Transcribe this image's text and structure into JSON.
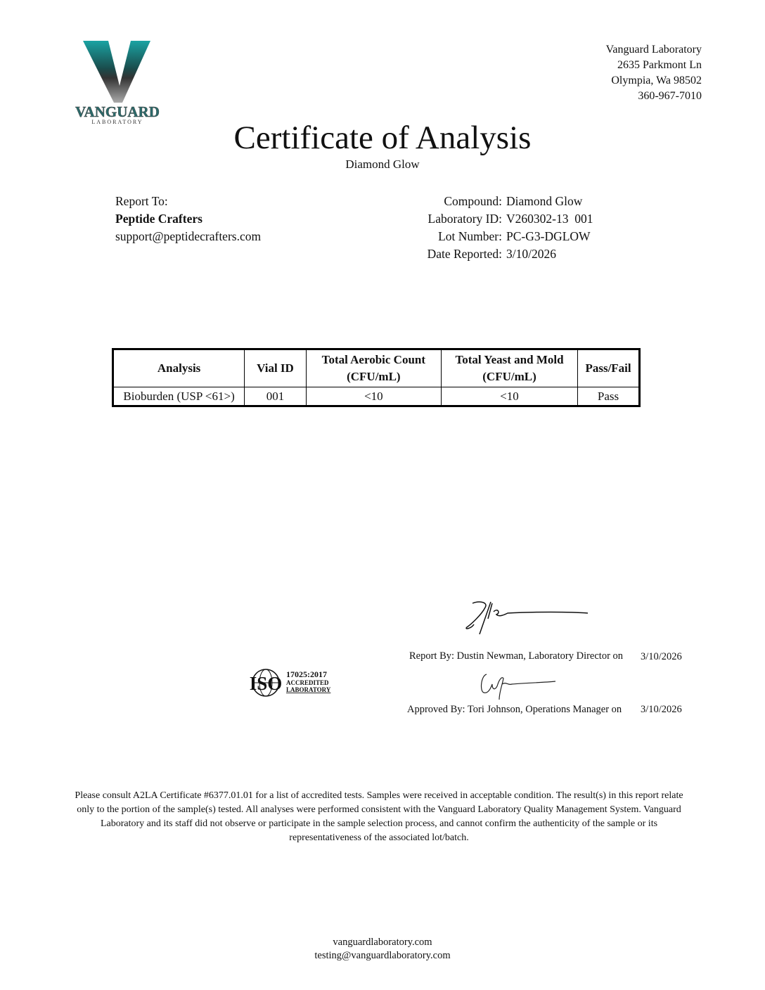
{
  "logo": {
    "text": "VANGUARD",
    "subtext": "LABORATORY",
    "colors": [
      "#1aa3a3",
      "#222222",
      "#bbbbbb"
    ]
  },
  "lab_address": [
    "Vanguard Laboratory",
    "2635 Parkmont Ln",
    "Olympia, Wa 98502",
    "360-967-7010"
  ],
  "title": "Certificate of Analysis",
  "subtitle": "Diamond Glow",
  "report_to": {
    "label": "Report To:",
    "company": "Peptide Crafters",
    "email": "support@peptidecrafters.com"
  },
  "info": [
    {
      "label": "Compound:",
      "value": "Diamond Glow"
    },
    {
      "label": "Laboratory ID:",
      "value": "V260302-13  001"
    },
    {
      "label": "Lot Number:",
      "value": "PC-G3-DGLOW"
    },
    {
      "label": "Date Reported:",
      "value": "3/10/2026"
    }
  ],
  "table": {
    "headers": [
      "Analysis",
      "Vial ID",
      "Total Aerobic Count",
      "Total Yeast and Mold",
      "Pass/Fail"
    ],
    "subheaders": [
      "",
      "",
      "(CFU/mL)",
      "(CFU/mL)",
      ""
    ],
    "rows": [
      [
        "Bioburden (USP <61>)",
        "001",
        "<10",
        "<10",
        "Pass"
      ]
    ]
  },
  "signatures": {
    "report_by": "Report By: Dustin Newman, Laboratory Director on",
    "report_date": "3/10/2026",
    "approved_by": "Approved By: Tori Johnson, Operations Manager on",
    "approved_date": "3/10/2026"
  },
  "iso_badge": {
    "mark": "ISO",
    "line1": "17025:2017",
    "line2": "ACCREDITED",
    "line3": "LABORATORY"
  },
  "disclaimer": "Please consult A2LA Certificate #6377.01.01 for a list of accredited tests. Samples were received in acceptable condition. The result(s) in this report relate only to the portion of the sample(s) tested. All analyses were performed consistent with the Vanguard Laboratory Quality Management System. Vanguard Laboratory and its staff did not observe or participate in the sample selection process, and cannot confirm the authenticity of the sample or its representativeness of the associated lot/batch.",
  "footer": {
    "website": "vanguardlaboratory.com",
    "email": "testing@vanguardlaboratory.com"
  }
}
